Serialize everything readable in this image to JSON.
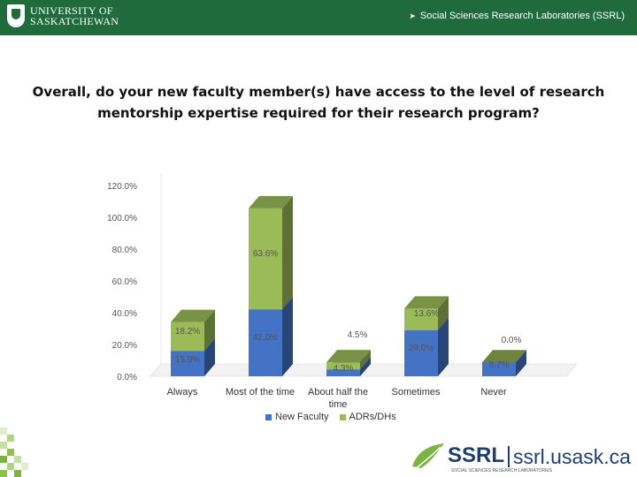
{
  "header": {
    "university_line1": "UNIVERSITY OF",
    "university_line2": "SASKATCHEWAN",
    "lab_name": "Social Sciences Research Laboratories (SSRL)"
  },
  "footer": {
    "ssrl_mark": "SSRL",
    "url": "ssrl.usask.ca",
    "subtitle": "SOCIAL SCIENCES RESEARCH LABORATORIES"
  },
  "colors": {
    "header_green": "#1f6b3b",
    "new_faculty": "#4472c4",
    "adrs_dhs": "#9bbb59"
  },
  "chart_data": {
    "type": "bar",
    "stacked": true,
    "three_d": true,
    "title": "Overall, do your new faculty member(s) have access to the level of research mentorship expertise required for their research program?",
    "categories": [
      "Always",
      "Most of the time",
      "About half the time",
      "Sometimes",
      "Never"
    ],
    "category_lines": [
      [
        "Always"
      ],
      [
        "Most of the time"
      ],
      [
        "About half the",
        "time"
      ],
      [
        "Sometimes"
      ],
      [
        "Never"
      ]
    ],
    "ylim": [
      0,
      120
    ],
    "yticks": [
      0,
      20,
      40,
      60,
      80,
      100,
      120
    ],
    "ytick_labels": [
      "0.0%",
      "20.0%",
      "40.0%",
      "60.0%",
      "80.0%",
      "100.0%",
      "120.0%"
    ],
    "series": [
      {
        "name": "New Faculty",
        "values": [
          15.9,
          42.0,
          4.3,
          29.0,
          8.7
        ],
        "labels": [
          "15.9%",
          "42.0%",
          "4.3%",
          "29.0%",
          "8.7%"
        ]
      },
      {
        "name": "ADRs/DHs",
        "values": [
          18.2,
          63.6,
          4.5,
          13.6,
          0.0
        ],
        "labels": [
          "18.2%",
          "63.6%",
          "4.5%",
          "13.6%",
          "0.0%"
        ]
      }
    ],
    "legend_position": "bottom"
  }
}
